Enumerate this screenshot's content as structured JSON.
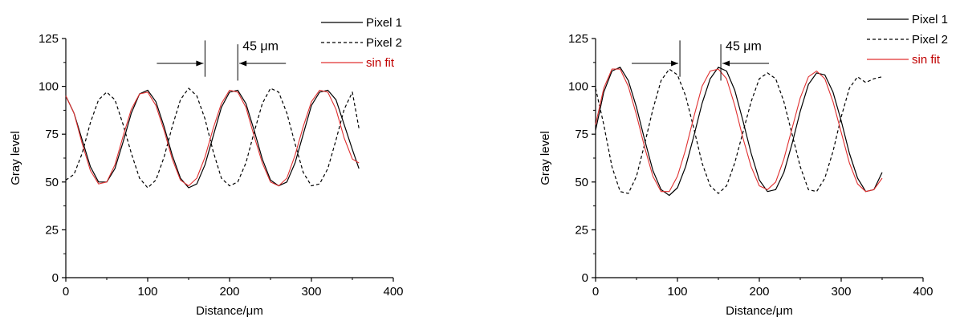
{
  "chart_data": [
    {
      "type": "line",
      "xlabel": "Distance/μm",
      "ylabel": "Gray level",
      "xlim": [
        0,
        400
      ],
      "ylim": [
        0,
        125
      ],
      "xticks": [
        "0",
        "100",
        "200",
        "300",
        "400"
      ],
      "yticks": [
        "0",
        "25",
        "50",
        "75",
        "100",
        "125"
      ],
      "grid": false,
      "legend_position": "top-right",
      "annotation": "45 μm",
      "series": [
        {
          "name": "Pixel 1",
          "style": "solid",
          "color": "#000000",
          "x": [
            0,
            10,
            20,
            30,
            40,
            50,
            60,
            70,
            80,
            90,
            100,
            110,
            120,
            130,
            140,
            150,
            160,
            170,
            180,
            190,
            200,
            210,
            220,
            230,
            240,
            250,
            260,
            270,
            280,
            290,
            300,
            310,
            320,
            330,
            340,
            350,
            358
          ],
          "y": [
            95,
            86,
            72,
            58,
            50,
            50,
            57,
            71,
            86,
            96,
            98,
            92,
            79,
            64,
            52,
            47,
            49,
            59,
            74,
            89,
            97,
            98,
            91,
            77,
            62,
            51,
            48,
            50,
            60,
            75,
            90,
            97,
            98,
            93,
            80,
            67,
            57
          ]
        },
        {
          "name": "Pixel 2",
          "style": "dashed",
          "color": "#000000",
          "x": [
            0,
            10,
            20,
            30,
            40,
            50,
            60,
            70,
            80,
            90,
            100,
            110,
            120,
            130,
            140,
            150,
            160,
            170,
            180,
            190,
            200,
            210,
            220,
            230,
            240,
            250,
            260,
            270,
            280,
            290,
            300,
            310,
            320,
            330,
            340,
            350,
            358
          ],
          "y": [
            51,
            54,
            65,
            81,
            93,
            97,
            93,
            80,
            65,
            52,
            47,
            51,
            63,
            79,
            93,
            99,
            95,
            83,
            66,
            52,
            48,
            50,
            60,
            76,
            91,
            99,
            97,
            86,
            70,
            55,
            48,
            49,
            57,
            72,
            88,
            97,
            78
          ]
        },
        {
          "name": "sin fit",
          "style": "solid",
          "color": "#e03030",
          "x": [
            0,
            10,
            20,
            30,
            40,
            50,
            60,
            70,
            80,
            90,
            100,
            110,
            120,
            130,
            140,
            150,
            160,
            170,
            180,
            190,
            200,
            210,
            220,
            230,
            240,
            250,
            260,
            270,
            280,
            290,
            300,
            310,
            320,
            330,
            340,
            350,
            358
          ],
          "y": [
            95,
            86,
            70,
            56,
            49,
            50,
            59,
            74,
            88,
            96,
            97,
            90,
            77,
            62,
            51,
            48,
            52,
            63,
            78,
            91,
            98,
            97,
            89,
            74,
            60,
            50,
            48,
            52,
            64,
            79,
            92,
            98,
            97,
            88,
            73,
            62,
            60
          ]
        }
      ]
    },
    {
      "type": "line",
      "xlabel": "Distance/μm",
      "ylabel": "Gray level",
      "xlim": [
        0,
        400
      ],
      "ylim": [
        0,
        125
      ],
      "xticks": [
        "0",
        "100",
        "200",
        "300",
        "400"
      ],
      "yticks": [
        "0",
        "25",
        "50",
        "75",
        "100",
        "125"
      ],
      "grid": false,
      "legend_position": "top-right",
      "annotation": "45 μm",
      "series": [
        {
          "name": "Pixel 1",
          "style": "solid",
          "color": "#000000",
          "x": [
            0,
            10,
            20,
            30,
            40,
            50,
            60,
            70,
            80,
            90,
            100,
            110,
            120,
            130,
            140,
            150,
            160,
            170,
            180,
            190,
            200,
            210,
            220,
            230,
            240,
            250,
            260,
            270,
            280,
            290,
            300,
            310,
            320,
            330,
            340,
            350
          ],
          "y": [
            77,
            97,
            108,
            110,
            103,
            89,
            72,
            56,
            46,
            43,
            47,
            58,
            74,
            91,
            104,
            110,
            108,
            98,
            82,
            65,
            51,
            45,
            46,
            55,
            70,
            87,
            101,
            107,
            106,
            97,
            82,
            65,
            52,
            45,
            46,
            55
          ]
        },
        {
          "name": "Pixel 2",
          "style": "dashed",
          "color": "#000000",
          "x": [
            0,
            10,
            20,
            30,
            40,
            50,
            60,
            70,
            80,
            90,
            100,
            110,
            120,
            130,
            140,
            150,
            160,
            170,
            180,
            190,
            200,
            210,
            220,
            230,
            240,
            250,
            260,
            270,
            280,
            290,
            300,
            310,
            320,
            330,
            340,
            350
          ],
          "y": [
            99,
            80,
            58,
            45,
            44,
            53,
            70,
            88,
            103,
            109,
            106,
            95,
            78,
            60,
            48,
            44,
            48,
            60,
            76,
            92,
            104,
            107,
            104,
            92,
            75,
            58,
            46,
            45,
            52,
            66,
            84,
            99,
            105,
            102,
            104,
            105
          ]
        },
        {
          "name": "sin fit",
          "style": "solid",
          "color": "#e03030",
          "x": [
            0,
            10,
            20,
            30,
            40,
            50,
            60,
            70,
            80,
            90,
            100,
            110,
            120,
            130,
            140,
            150,
            160,
            170,
            180,
            190,
            200,
            210,
            220,
            230,
            240,
            250,
            260,
            270,
            280,
            290,
            300,
            310,
            320,
            330,
            340,
            350
          ],
          "y": [
            80,
            99,
            109,
            109,
            100,
            85,
            68,
            53,
            45,
            45,
            53,
            67,
            84,
            100,
            108,
            109,
            104,
            90,
            73,
            58,
            48,
            46,
            50,
            62,
            78,
            94,
            105,
            108,
            104,
            92,
            76,
            60,
            49,
            45,
            46,
            52
          ]
        }
      ]
    }
  ]
}
